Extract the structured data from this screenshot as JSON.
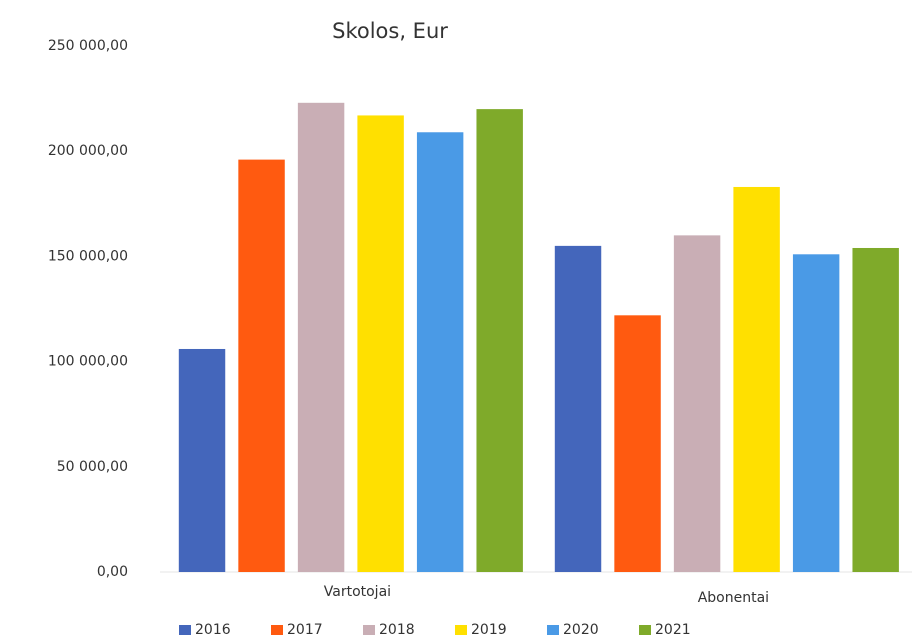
{
  "chart_data": {
    "type": "bar",
    "title": "Skolos, Eur",
    "categories": [
      "Vartotojai",
      "Abonentai"
    ],
    "series": [
      {
        "name": "2016",
        "color": "#4466bb",
        "values": [
          106000,
          155000
        ]
      },
      {
        "name": "2017",
        "color": "#ff5a10",
        "values": [
          196000,
          122000
        ]
      },
      {
        "name": "2018",
        "color": "#c9aeb5",
        "values": [
          223000,
          160000
        ]
      },
      {
        "name": "2019",
        "color": "#ffe000",
        "values": [
          217000,
          183000
        ]
      },
      {
        "name": "2020",
        "color": "#4a9ae6",
        "values": [
          209000,
          151000
        ]
      },
      {
        "name": "2021",
        "color": "#7faa2a",
        "values": [
          220000,
          154000
        ]
      }
    ],
    "ylim": [
      0,
      250000
    ],
    "yticks": [
      {
        "value": 0,
        "label": "0,00"
      },
      {
        "value": 50000,
        "label": "50 000,00"
      },
      {
        "value": 100000,
        "label": "100 000,00"
      },
      {
        "value": 150000,
        "label": "150 000,00"
      },
      {
        "value": 200000,
        "label": "200 000,00"
      },
      {
        "value": 250000,
        "label": "250 000,00"
      }
    ],
    "grid": false,
    "legend": "bottom"
  }
}
